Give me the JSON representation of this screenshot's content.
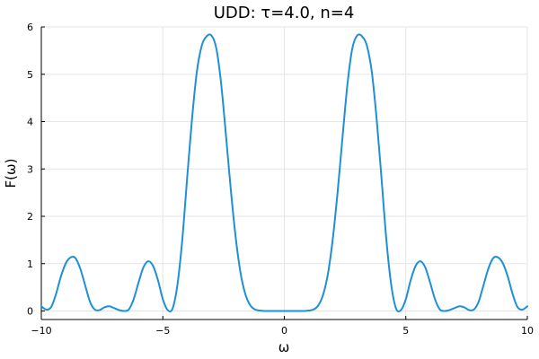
{
  "chart_data": {
    "type": "line",
    "title": "UDD: τ=4.0, n=4",
    "xlabel": "ω",
    "ylabel": "F(ω)",
    "xlim": [
      -10,
      10
    ],
    "ylim": [
      -0.18,
      6.0
    ],
    "xticks": [
      -10,
      -5,
      0,
      5,
      10
    ],
    "xtick_labels": [
      "−10",
      "−5",
      "0",
      "5",
      "10"
    ],
    "yticks": [
      0,
      1,
      2,
      3,
      4,
      5,
      6
    ],
    "ytick_labels": [
      "0",
      "1",
      "2",
      "3",
      "4",
      "5",
      "6"
    ],
    "grid": true,
    "legend": "none",
    "series": [
      {
        "color": "#1f8fd8",
        "x": [
          -10.0,
          -9.8,
          -9.6,
          -9.4,
          -9.2,
          -9.0,
          -8.8,
          -8.6,
          -8.4,
          -8.2,
          -8.0,
          -7.8,
          -7.6,
          -7.4,
          -7.2,
          -7.0,
          -6.8,
          -6.6,
          -6.4,
          -6.2,
          -6.0,
          -5.8,
          -5.6,
          -5.4,
          -5.2,
          -5.0,
          -4.8,
          -4.6,
          -4.4,
          -4.2,
          -4.0,
          -3.8,
          -3.6,
          -3.4,
          -3.2,
          -3.0,
          -2.8,
          -2.6,
          -2.4,
          -2.2,
          -2.0,
          -1.8,
          -1.6,
          -1.4,
          -1.2,
          -1.0,
          -0.8,
          -0.6,
          -0.4,
          -0.2,
          0.0,
          0.2,
          0.4,
          0.6,
          0.8,
          1.0,
          1.2,
          1.4,
          1.6,
          1.8,
          2.0,
          2.2,
          2.4,
          2.6,
          2.8,
          3.0,
          3.2,
          3.4,
          3.6,
          3.8,
          4.0,
          4.2,
          4.4,
          4.6,
          4.8,
          5.0,
          5.2,
          5.4,
          5.6,
          5.8,
          6.0,
          6.2,
          6.4,
          6.6,
          6.8,
          7.0,
          7.2,
          7.4,
          7.6,
          7.8,
          8.0,
          8.2,
          8.4,
          8.6,
          8.8,
          9.0,
          9.2,
          9.4,
          9.6,
          9.8,
          10.0
        ],
        "y": [
          0.1,
          0.03,
          0.08,
          0.35,
          0.72,
          1.0,
          1.13,
          1.12,
          0.9,
          0.55,
          0.2,
          0.03,
          0.02,
          0.08,
          0.1,
          0.06,
          0.02,
          0.0,
          0.03,
          0.25,
          0.6,
          0.92,
          1.05,
          0.95,
          0.65,
          0.25,
          0.02,
          0.05,
          0.55,
          1.5,
          2.8,
          4.05,
          5.05,
          5.6,
          5.8,
          5.82,
          5.55,
          4.8,
          3.7,
          2.55,
          1.55,
          0.8,
          0.35,
          0.12,
          0.03,
          0.01,
          0.0,
          0.0,
          0.0,
          0.0,
          0.0,
          0.0,
          0.0,
          0.0,
          0.0,
          0.01,
          0.03,
          0.12,
          0.35,
          0.8,
          1.55,
          2.55,
          3.7,
          4.8,
          5.55,
          5.82,
          5.8,
          5.6,
          5.05,
          4.05,
          2.8,
          1.5,
          0.55,
          0.05,
          0.02,
          0.25,
          0.65,
          0.95,
          1.05,
          0.92,
          0.6,
          0.25,
          0.03,
          0.0,
          0.02,
          0.06,
          0.1,
          0.08,
          0.02,
          0.03,
          0.2,
          0.55,
          0.9,
          1.12,
          1.13,
          1.0,
          0.72,
          0.35,
          0.08,
          0.03,
          0.1
        ]
      }
    ]
  }
}
